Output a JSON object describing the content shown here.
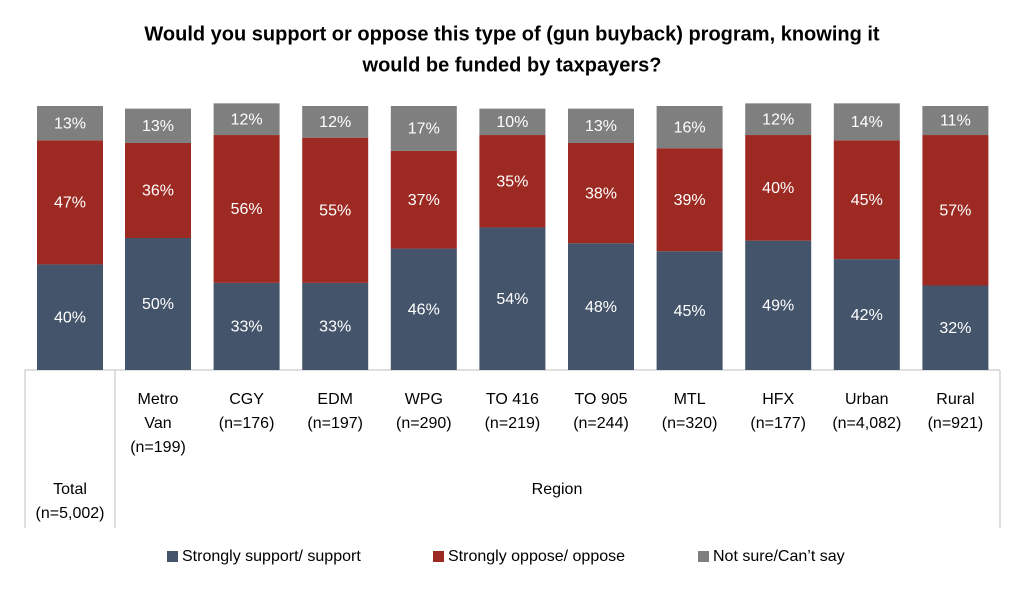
{
  "chart_data": {
    "type": "stacked_bar",
    "title": [
      "Would you support or oppose this type of (gun buyback) program, knowing it",
      "would be funded by taxpayers?"
    ],
    "categories": [
      [
        "Total",
        "(n=5,002)"
      ],
      [
        "Metro",
        "Van",
        "(n=199)"
      ],
      [
        "CGY",
        "(n=176)"
      ],
      [
        "EDM",
        "(n=197)"
      ],
      [
        "WPG",
        "(n=290)"
      ],
      [
        "TO 416",
        "(n=219)"
      ],
      [
        "TO 905",
        "(n=244)"
      ],
      [
        "MTL",
        "(n=320)"
      ],
      [
        "HFX",
        "(n=177)"
      ],
      [
        "Urban",
        "(n=4,082)"
      ],
      [
        "Rural",
        "(n=921)"
      ]
    ],
    "group_label": "Region",
    "ylim": [
      0,
      100
    ],
    "series": [
      {
        "name": "Strongly support/ support",
        "color": "#44546a",
        "values": [
          40,
          50,
          33,
          33,
          46,
          54,
          48,
          45,
          49,
          42,
          32
        ],
        "value_labels": [
          "40%",
          "50%",
          "33%",
          "33%",
          "46%",
          "54%",
          "48%",
          "45%",
          "49%",
          "42%",
          "32%"
        ]
      },
      {
        "name": "Strongly oppose/ oppose",
        "color": "#9c2a23",
        "values": [
          47,
          36,
          56,
          55,
          37,
          35,
          38,
          39,
          40,
          45,
          57
        ],
        "value_labels": [
          "47%",
          "36%",
          "56%",
          "55%",
          "37%",
          "35%",
          "38%",
          "39%",
          "40%",
          "45%",
          "57%"
        ]
      },
      {
        "name": "Not sure/Can’t say",
        "color": "#7f7f7f",
        "values": [
          13,
          13,
          12,
          12,
          17,
          10,
          13,
          16,
          12,
          14,
          11
        ],
        "value_labels": [
          "13%",
          "13%",
          "12%",
          "12%",
          "17%",
          "10%",
          "13%",
          "16%",
          "12%",
          "14%",
          "11%"
        ]
      }
    ],
    "legend": "bottom"
  }
}
